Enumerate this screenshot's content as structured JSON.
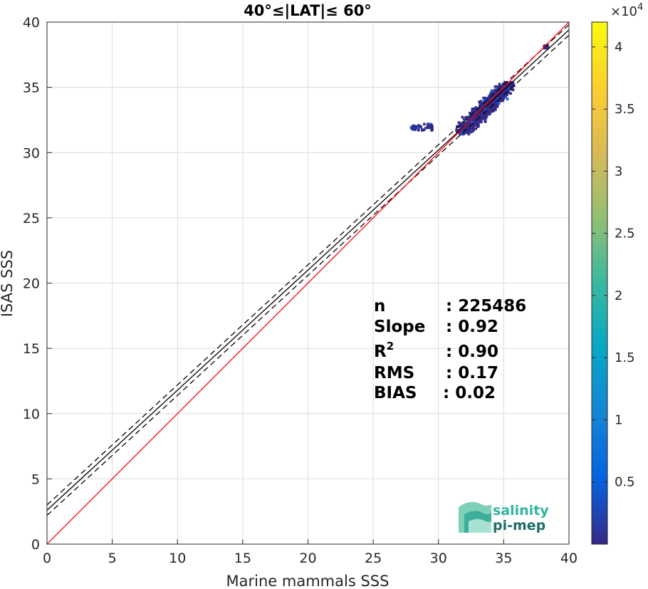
{
  "chart_data": {
    "type": "scatter",
    "title": "40°≤|LAT|≤ 60°",
    "xlabel": "Marine mammals SSS",
    "ylabel": "ISAS SSS",
    "xlim": [
      0,
      40
    ],
    "ylim": [
      0,
      40
    ],
    "xticks": [
      "0",
      "5",
      "10",
      "15",
      "20",
      "25",
      "30",
      "35",
      "40"
    ],
    "yticks": [
      "0",
      "5",
      "10",
      "15",
      "20",
      "25",
      "30",
      "35",
      "40"
    ],
    "grid": true,
    "density_clusters": [
      {
        "x_range": [
          31.5,
          35.5
        ],
        "y_range": [
          31.5,
          35.5
        ],
        "level": "high"
      },
      {
        "x_range": [
          27.8,
          29.5
        ],
        "y_range": [
          31.8,
          32.3
        ],
        "level": "low"
      },
      {
        "x_range": [
          38.0,
          38.3
        ],
        "y_range": [
          38.1,
          38.3
        ],
        "level": "low"
      }
    ],
    "lines": {
      "one_to_one": {
        "slope": 1,
        "intercept": 0,
        "color": "#ff0000"
      },
      "fit": {
        "slope": 0.92,
        "intercept": 2.6,
        "color": "#000000"
      },
      "fit_upper": {
        "slope": 0.92,
        "intercept": 3.0,
        "color": "#000000",
        "style": "dashed"
      },
      "fit_lower": {
        "slope": 0.92,
        "intercept": 2.2,
        "color": "#000000",
        "style": "dashed"
      }
    },
    "stats": [
      {
        "label": "n",
        "value": ": 225486"
      },
      {
        "label": "Slope",
        "value": ": 0.92"
      },
      {
        "label": "R",
        "sup": "2",
        "value": ": 0.90"
      },
      {
        "label": "RMS",
        "value": ": 0.17"
      },
      {
        "label": "BIAS",
        "value": ": 0.02"
      }
    ],
    "colorbar": {
      "range": [
        0,
        42000
      ],
      "ticks": [
        "0.5",
        "1",
        "1.5",
        "2",
        "2.5",
        "3",
        "3.5",
        "4"
      ],
      "tick_values": [
        0.5,
        1,
        1.5,
        2,
        2.5,
        3,
        3.5,
        4
      ],
      "exponent_base": "×10",
      "exponent": "4",
      "colors": [
        "#352a87",
        "#0363e1",
        "#1485d4",
        "#06a7c6",
        "#38b99e",
        "#92bf73",
        "#d9ba56",
        "#fcce2e",
        "#f9fb0e"
      ]
    }
  },
  "logo": {
    "line1": "salinity",
    "line2": "pi-mep"
  }
}
